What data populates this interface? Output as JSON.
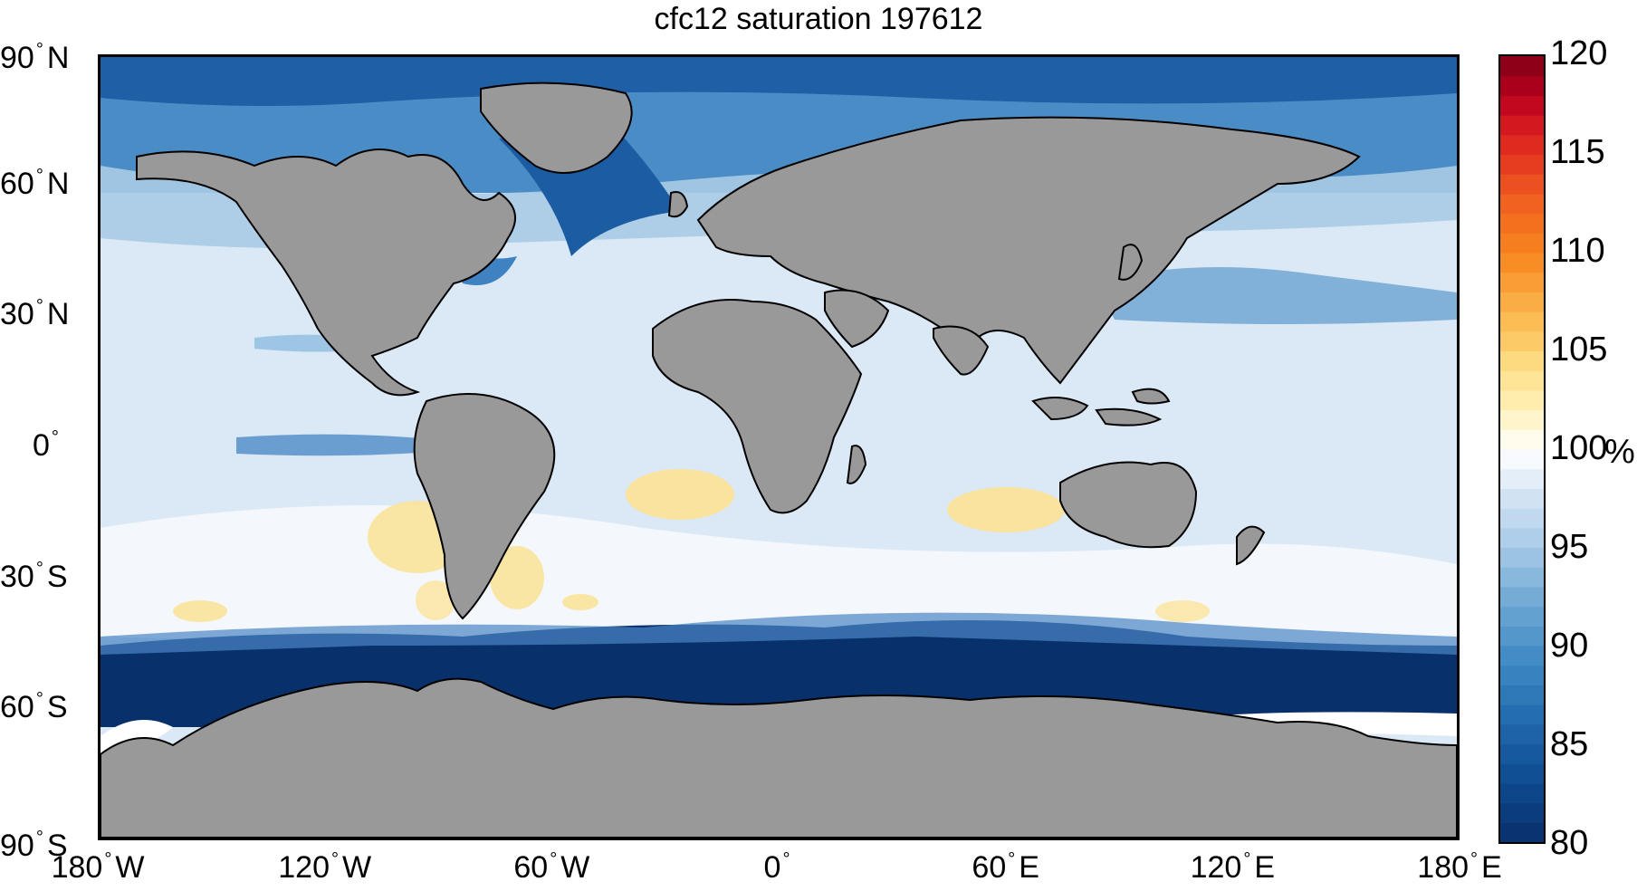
{
  "map": {
    "title": "cfc12 saturation 197612",
    "lat_labels": [
      {
        "num": "90",
        "hemi": "N",
        "lat": 90
      },
      {
        "num": "60",
        "hemi": "N",
        "lat": 60
      },
      {
        "num": "30",
        "hemi": "N",
        "lat": 30
      },
      {
        "num": "0",
        "hemi": "",
        "lat": 0
      },
      {
        "num": "30",
        "hemi": "S",
        "lat": -30
      },
      {
        "num": "60",
        "hemi": "S",
        "lat": -60
      },
      {
        "num": "90",
        "hemi": "S",
        "lat": -90
      }
    ],
    "lon_labels": [
      {
        "num": "180",
        "hemi": "W",
        "lon": -180
      },
      {
        "num": "120",
        "hemi": "W",
        "lon": -120
      },
      {
        "num": "60",
        "hemi": "W",
        "lon": -60
      },
      {
        "num": "0",
        "hemi": "",
        "lon": 0
      },
      {
        "num": "60",
        "hemi": "E",
        "lon": 60
      },
      {
        "num": "120",
        "hemi": "E",
        "lon": 120
      },
      {
        "num": "180",
        "hemi": "E",
        "lon": 180
      }
    ],
    "colorbar": {
      "unit": "%",
      "min": 80,
      "max": 120,
      "ticks": [
        "120",
        "115",
        "110",
        "105",
        "100",
        "95",
        "90",
        "85",
        "80"
      ]
    },
    "colors": {
      "land": "#999999",
      "deep_blue": "#08306b",
      "mid_blue": "#2a6fb5",
      "light_blue": "#9ec5e3",
      "ocean_base": "#dbe8f5",
      "white": "#ffffff",
      "yellow": "#fbe39a",
      "orange": "#f7941e",
      "red": "#c0001a",
      "dark_red": "#7f0015"
    }
  }
}
